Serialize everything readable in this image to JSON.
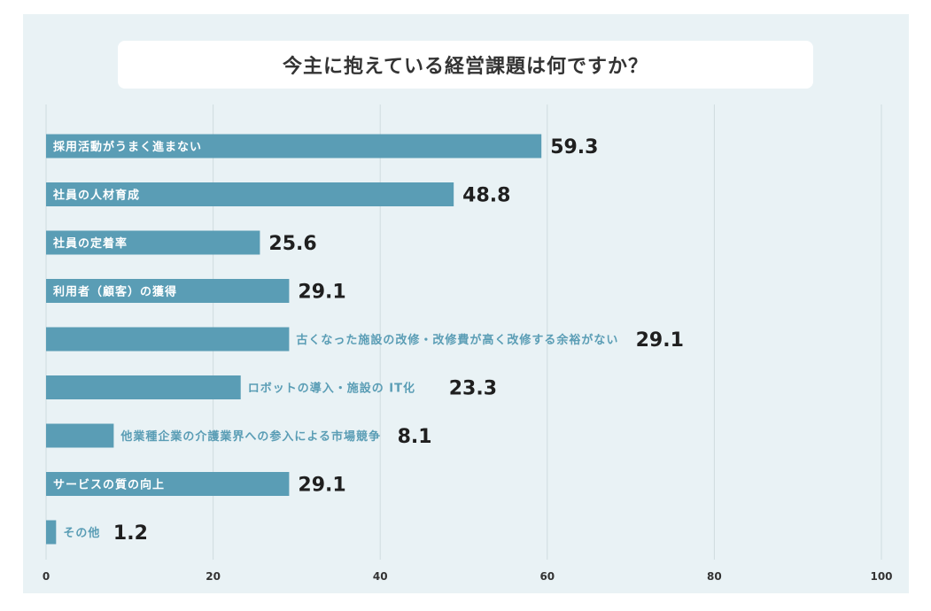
{
  "chart_data": {
    "type": "bar",
    "orientation": "horizontal",
    "title": "今主に抱えている経営課題は何ですか？",
    "categories": [
      "採用活動がうまく進まない",
      "社員の人材育成",
      "社員の定着率",
      "利用者（顧客）の獲得",
      "古くなった施設の改修・改修費が高く改修する余裕がない",
      "ロボットの導入・施設の IT化",
      "他業種企業の介護業界への参入による市場競争",
      "サービスの質の向上",
      "その他"
    ],
    "values": [
      59.3,
      48.8,
      25.6,
      29.1,
      29.1,
      23.3,
      8.1,
      29.1,
      1.2
    ],
    "value_labels": [
      "59.3",
      "48.8",
      "25.6",
      "29.1",
      "29.1",
      "23.3",
      "8.1",
      "29.1",
      "1.2"
    ],
    "xlim": [
      0,
      100
    ],
    "xticks": [
      "0",
      "20",
      "40",
      "60",
      "80",
      "100"
    ],
    "grid": true,
    "xlabel": "",
    "ylabel": ""
  },
  "colors": {
    "bar": "#5a9db5",
    "label_inside": "#ffffff",
    "label_outside": "#5a9db5",
    "grid": "#cfdcdf"
  }
}
